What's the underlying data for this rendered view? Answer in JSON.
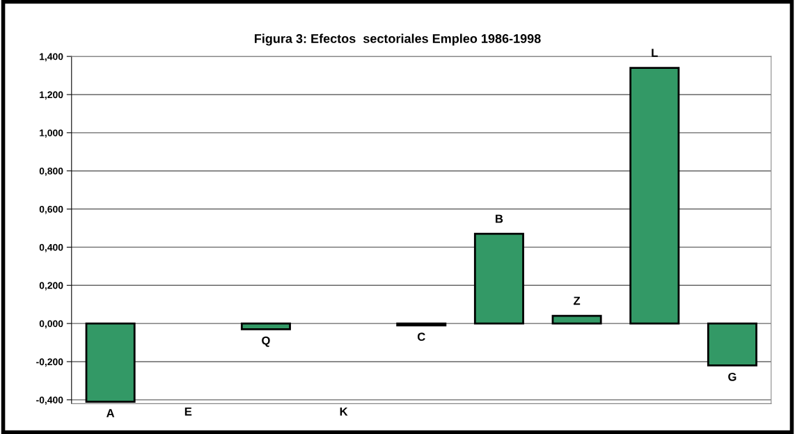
{
  "chart_data": {
    "type": "bar",
    "title": "Figura 3: Efectos  sectoriales Empleo 1986-1998",
    "categories": [
      "A",
      "E",
      "Q",
      "K",
      "C",
      "B",
      "Z",
      "L",
      "G"
    ],
    "values": [
      -0.41,
      null,
      -0.03,
      null,
      -0.01,
      0.47,
      0.04,
      1.34,
      -0.22
    ],
    "color": "#339966",
    "ylim": [
      -0.42,
      1.4
    ],
    "yticks": [
      {
        "value": -0.4,
        "label": "-0,400"
      },
      {
        "value": -0.2,
        "label": "-0,200"
      },
      {
        "value": 0,
        "label": "0,000"
      },
      {
        "value": 0.2,
        "label": "0,200"
      },
      {
        "value": 0.4,
        "label": "0,400"
      },
      {
        "value": 0.6,
        "label": "0,600"
      },
      {
        "value": 0.8,
        "label": "0,800"
      },
      {
        "value": 1.0,
        "label": "1,000"
      },
      {
        "value": 1.2,
        "label": "1,200"
      },
      {
        "value": 1.4,
        "label": "1,400"
      }
    ],
    "grid": "y",
    "tick_labels": "y"
  }
}
